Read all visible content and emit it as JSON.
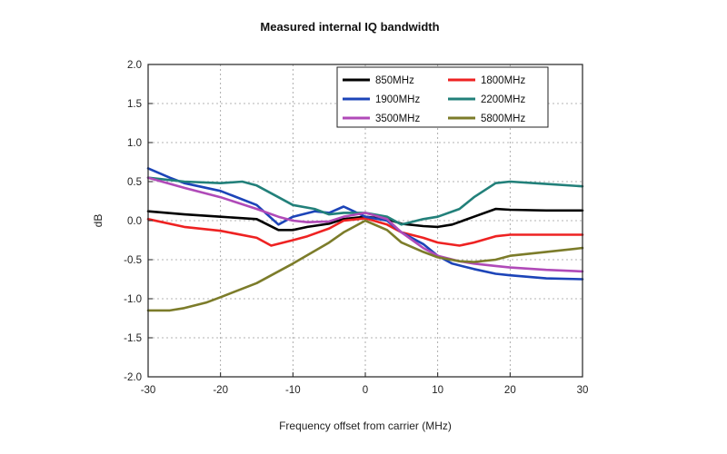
{
  "chart_data": {
    "type": "line",
    "title": "Measured internal IQ bandwidth",
    "xlabel": "Frequency offset from carrier (MHz)",
    "ylabel": "dB",
    "xlim": [
      -30,
      30
    ],
    "ylim": [
      -2.0,
      2.0
    ],
    "xticks": [
      -30,
      -20,
      -10,
      0,
      10,
      20,
      30
    ],
    "yticks": [
      "-2.0",
      "-1.5",
      "-1.0",
      "-0.5",
      "0.0",
      "0.5",
      "1.0",
      "1.5",
      "2.0"
    ],
    "grid": true,
    "legend_position": "top-right",
    "series": [
      {
        "name": "850MHz",
        "color": "#000000",
        "x": [
          -30,
          -25,
          -20,
          -15,
          -12,
          -10,
          -8,
          -5,
          -3,
          0,
          3,
          5,
          8,
          10,
          12,
          15,
          18,
          20,
          25,
          30
        ],
        "y": [
          0.12,
          0.08,
          0.05,
          0.02,
          -0.12,
          -0.12,
          -0.08,
          -0.04,
          0.02,
          0.05,
          0.02,
          -0.04,
          -0.07,
          -0.08,
          -0.05,
          0.05,
          0.15,
          0.14,
          0.13,
          0.13
        ]
      },
      {
        "name": "1800MHz",
        "color": "#ee2222",
        "x": [
          -30,
          -25,
          -20,
          -15,
          -13,
          -10,
          -8,
          -5,
          -3,
          0,
          3,
          5,
          8,
          10,
          13,
          15,
          18,
          20,
          25,
          30
        ],
        "y": [
          0.02,
          -0.08,
          -0.13,
          -0.22,
          -0.32,
          -0.25,
          -0.2,
          -0.1,
          0.0,
          0.03,
          -0.05,
          -0.15,
          -0.22,
          -0.28,
          -0.32,
          -0.28,
          -0.2,
          -0.18,
          -0.18,
          -0.18
        ]
      },
      {
        "name": "1900MHz",
        "color": "#1c44b8",
        "x": [
          -30,
          -27,
          -25,
          -20,
          -15,
          -12,
          -10,
          -7,
          -5,
          -3,
          0,
          3,
          5,
          8,
          10,
          12,
          15,
          18,
          20,
          25,
          30
        ],
        "y": [
          0.67,
          0.55,
          0.48,
          0.38,
          0.2,
          -0.05,
          0.05,
          0.12,
          0.1,
          0.18,
          0.05,
          0.0,
          -0.15,
          -0.3,
          -0.45,
          -0.55,
          -0.62,
          -0.68,
          -0.7,
          -0.74,
          -0.75
        ]
      },
      {
        "name": "2200MHz",
        "color": "#22807a",
        "x": [
          -30,
          -25,
          -20,
          -17,
          -15,
          -12,
          -10,
          -7,
          -5,
          -3,
          0,
          3,
          5,
          8,
          10,
          13,
          15,
          18,
          20,
          25,
          30
        ],
        "y": [
          0.55,
          0.5,
          0.48,
          0.5,
          0.45,
          0.3,
          0.2,
          0.15,
          0.08,
          0.1,
          0.1,
          0.05,
          -0.05,
          0.02,
          0.05,
          0.15,
          0.3,
          0.48,
          0.5,
          0.47,
          0.44
        ]
      },
      {
        "name": "3500MHz",
        "color": "#b04ab8",
        "x": [
          -30,
          -25,
          -20,
          -15,
          -12,
          -10,
          -8,
          -5,
          -3,
          0,
          3,
          5,
          8,
          10,
          13,
          15,
          18,
          20,
          25,
          30
        ],
        "y": [
          0.55,
          0.42,
          0.3,
          0.15,
          0.05,
          0.0,
          -0.02,
          -0.01,
          0.05,
          0.1,
          0.02,
          -0.15,
          -0.35,
          -0.45,
          -0.52,
          -0.55,
          -0.58,
          -0.6,
          -0.63,
          -0.65
        ]
      },
      {
        "name": "5800MHz",
        "color": "#7c7c2a",
        "x": [
          -30,
          -27,
          -25,
          -22,
          -20,
          -15,
          -10,
          -5,
          -3,
          0,
          3,
          5,
          8,
          10,
          13,
          15,
          18,
          20,
          25,
          30
        ],
        "y": [
          -1.15,
          -1.15,
          -1.12,
          -1.05,
          -0.98,
          -0.8,
          -0.55,
          -0.28,
          -0.15,
          0.0,
          -0.12,
          -0.28,
          -0.4,
          -0.47,
          -0.52,
          -0.53,
          -0.5,
          -0.45,
          -0.4,
          -0.35
        ]
      }
    ]
  }
}
